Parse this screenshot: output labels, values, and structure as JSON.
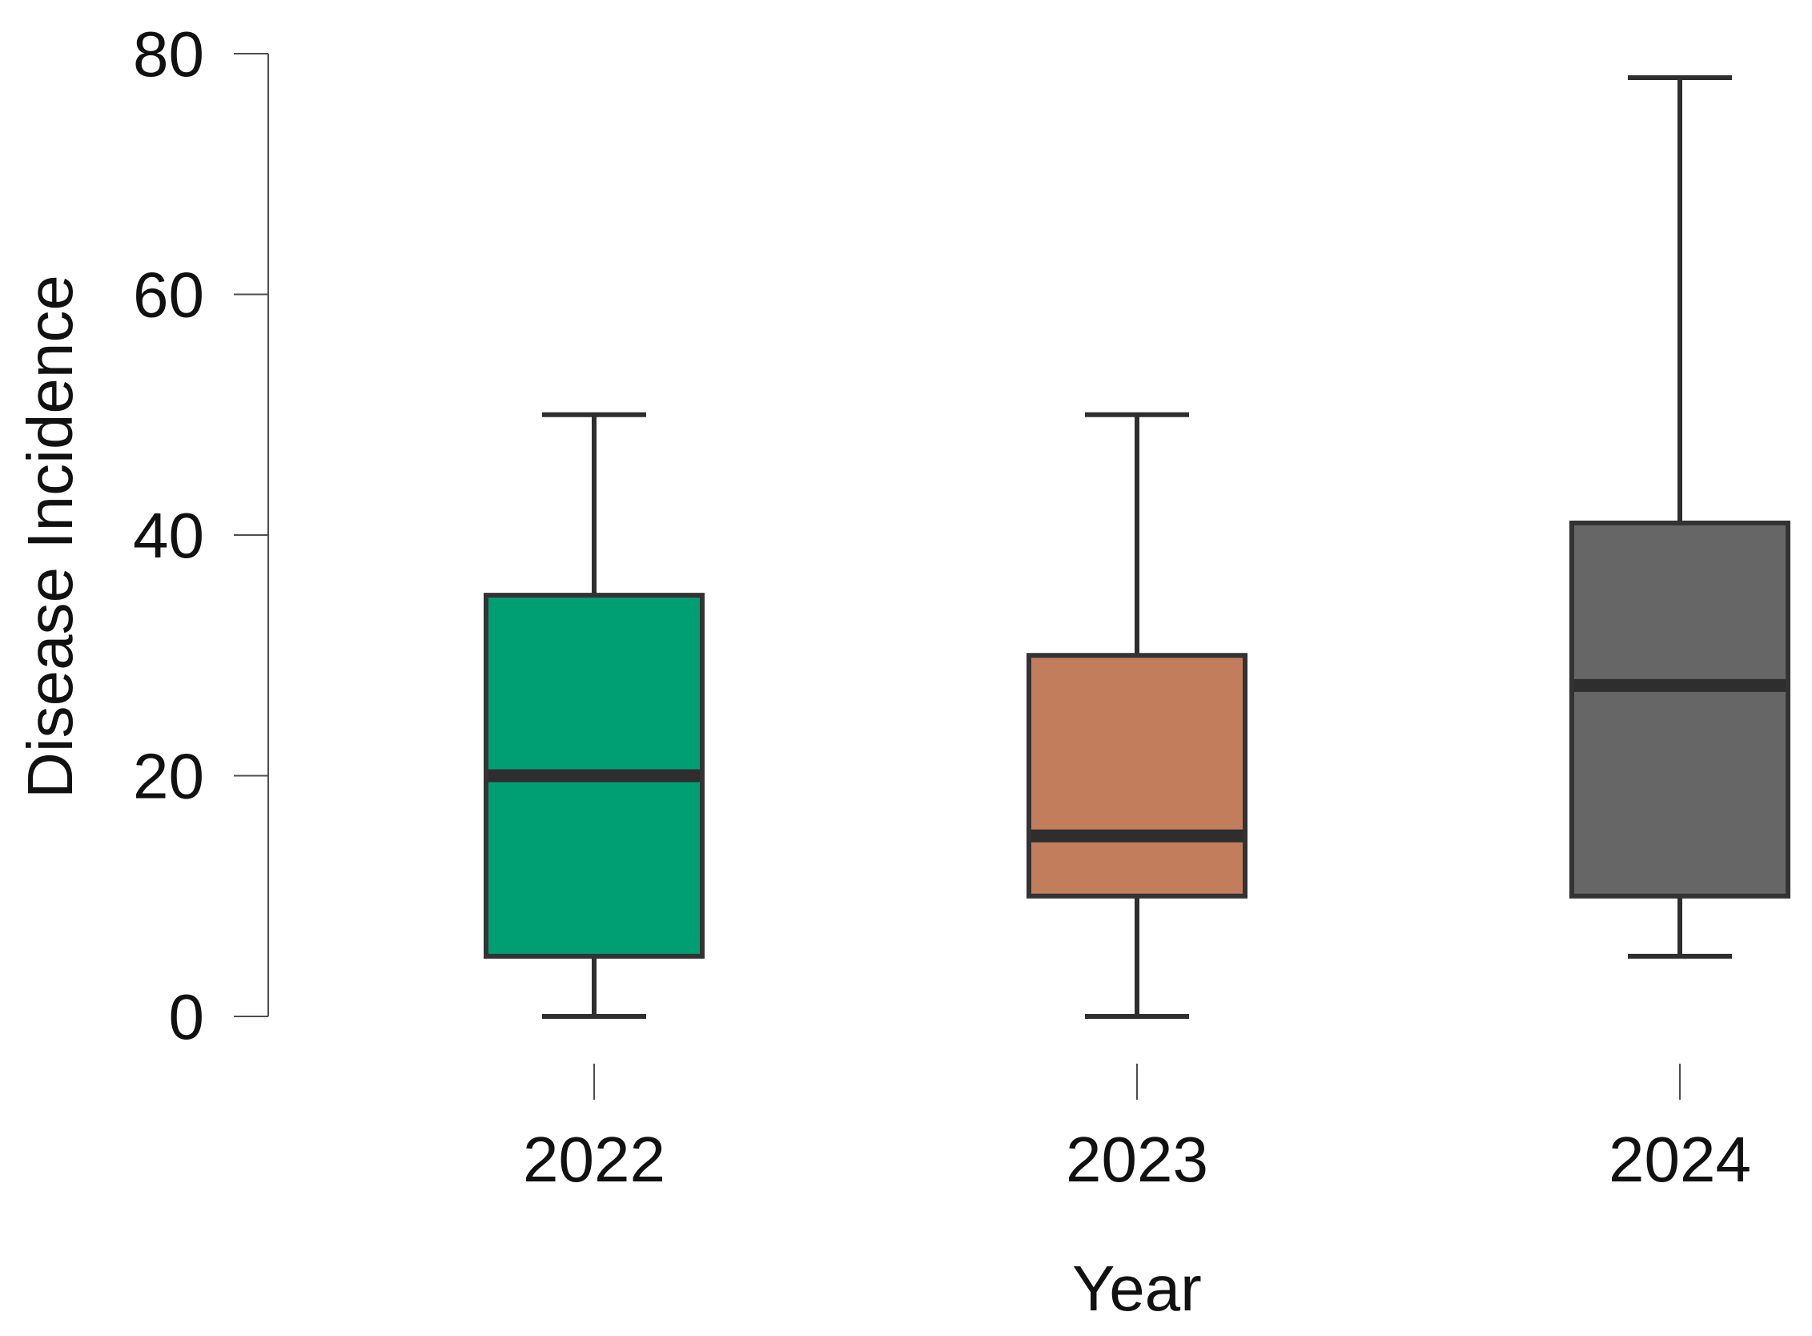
{
  "chart_data": {
    "type": "box",
    "xlabel": "Year",
    "ylabel": "Disease Incidence",
    "ylim": [
      0,
      80
    ],
    "yticks": [
      "0",
      "20",
      "40",
      "60",
      "80"
    ],
    "categories": [
      "2022",
      "2023",
      "2024"
    ],
    "boxes": [
      {
        "category": "2022",
        "min": 0,
        "q1": 5,
        "median": 20,
        "q3": 35,
        "max": 50,
        "color": "#009E73"
      },
      {
        "category": "2023",
        "min": 0,
        "q1": 10,
        "median": 15,
        "q3": 30,
        "max": 50,
        "color": "#C27D5C"
      },
      {
        "category": "2024",
        "min": 5,
        "q1": 10,
        "median": 27.5,
        "q3": 41,
        "max": 78,
        "color": "#666666"
      }
    ],
    "grid": false,
    "legend": "none"
  }
}
